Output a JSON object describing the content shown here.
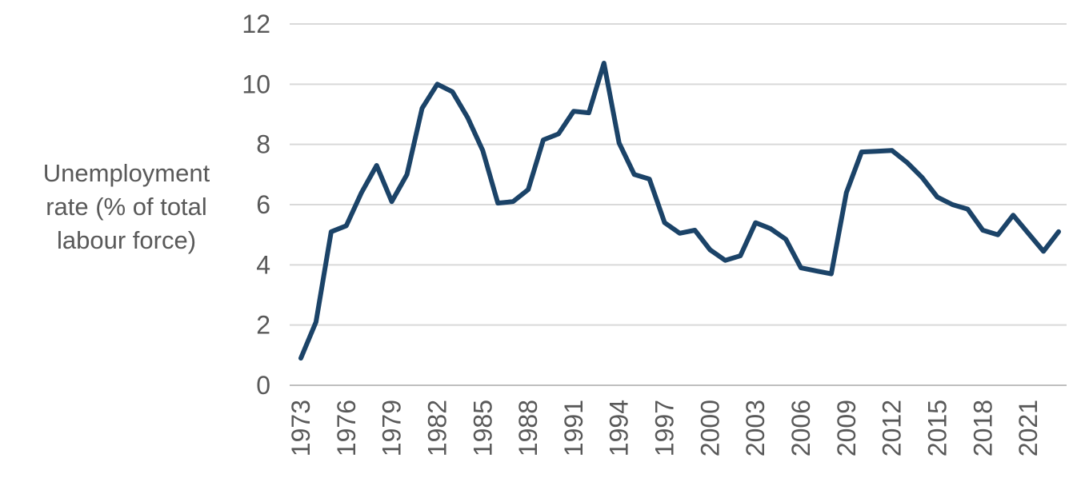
{
  "chart_data": {
    "type": "line",
    "title": "",
    "xlabel": "",
    "ylabel_lines": [
      "Unemployment",
      "rate (% of total",
      "labour force)"
    ],
    "ylim": [
      0,
      12
    ],
    "yticks": [
      0,
      2,
      4,
      6,
      8,
      10,
      12
    ],
    "xlim": [
      1973,
      2023
    ],
    "xticks": [
      1973,
      1976,
      1979,
      1982,
      1985,
      1988,
      1991,
      1994,
      1997,
      2000,
      2003,
      2006,
      2009,
      2012,
      2015,
      2018,
      2021
    ],
    "grid": true,
    "legend": "none",
    "line_color": "#1b4368",
    "gridline_color": "#d9d9d9",
    "series": [
      {
        "x": [
          1973,
          1974,
          1975,
          1976,
          1977,
          1978,
          1979,
          1980,
          1981,
          1982,
          1983,
          1984,
          1985,
          1986,
          1987,
          1988,
          1989,
          1990,
          1991,
          1992,
          1993,
          1994,
          1995,
          1996,
          1997,
          1998,
          1999,
          2000,
          2001,
          2002,
          2003,
          2004,
          2005,
          2006,
          2007,
          2008,
          2009,
          2010,
          2011,
          2012,
          2013,
          2014,
          2015,
          2016,
          2017,
          2018,
          2019,
          2020,
          2021,
          2022,
          2023
        ],
        "values": [
          0.9,
          2.1,
          5.1,
          5.3,
          6.4,
          7.3,
          6.1,
          7.0,
          9.2,
          10.0,
          9.75,
          8.9,
          7.8,
          6.05,
          6.1,
          6.5,
          8.15,
          8.35,
          9.1,
          9.05,
          10.7,
          8.05,
          7.0,
          6.85,
          5.4,
          5.05,
          5.15,
          4.5,
          4.15,
          4.3,
          5.4,
          5.2,
          4.85,
          3.9,
          3.8,
          3.7,
          6.4,
          7.75,
          7.77,
          7.8,
          7.4,
          6.9,
          6.25,
          6.0,
          5.85,
          5.15,
          5.0,
          5.65,
          5.05,
          4.45,
          5.1
        ]
      }
    ]
  }
}
